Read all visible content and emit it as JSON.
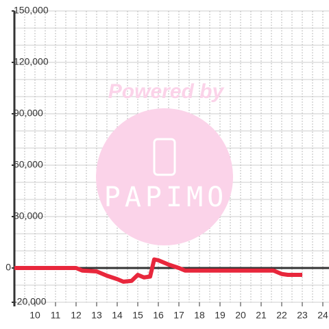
{
  "chart_data": {
    "type": "line",
    "watermark": {
      "top": "Powered by",
      "logo": "PAPIMO"
    },
    "x": [
      9,
      10,
      11,
      12,
      12.3,
      13,
      13.5,
      14,
      14.3,
      14.7,
      15,
      15.3,
      15.6,
      15.8,
      16,
      16.5,
      17,
      17.3,
      18,
      19,
      20,
      21,
      21.6,
      22,
      22.3,
      23
    ],
    "series": [
      {
        "color": "#e8273c",
        "values": [
          0,
          0,
          0,
          0,
          -1500,
          -2000,
          -4500,
          -6500,
          -8000,
          -7500,
          -4000,
          -5500,
          -5000,
          5000,
          4500,
          2000,
          0,
          -1500,
          -1500,
          -1500,
          -1500,
          -1500,
          -1500,
          -3500,
          -4000,
          -4000
        ]
      }
    ],
    "xlim": [
      9,
      24.3
    ],
    "xticks": [
      10,
      11,
      12,
      13,
      14,
      15,
      16,
      17,
      18,
      19,
      20,
      21,
      22,
      23,
      24
    ],
    "ylim": [
      -20000,
      150000
    ],
    "yticks": [
      {
        "value": -20000,
        "label": "-20,000"
      },
      0,
      {
        "value": 30000,
        "label": "30,000"
      },
      {
        "value": 60000,
        "label": "60,000"
      },
      {
        "value": 90000,
        "label": "90,000"
      },
      {
        "value": 120000,
        "label": "120,000"
      },
      {
        "value": 150000,
        "label": "150,000"
      }
    ],
    "x_minor_step": 0.5,
    "y_minor_step": 10000,
    "grid": true
  }
}
